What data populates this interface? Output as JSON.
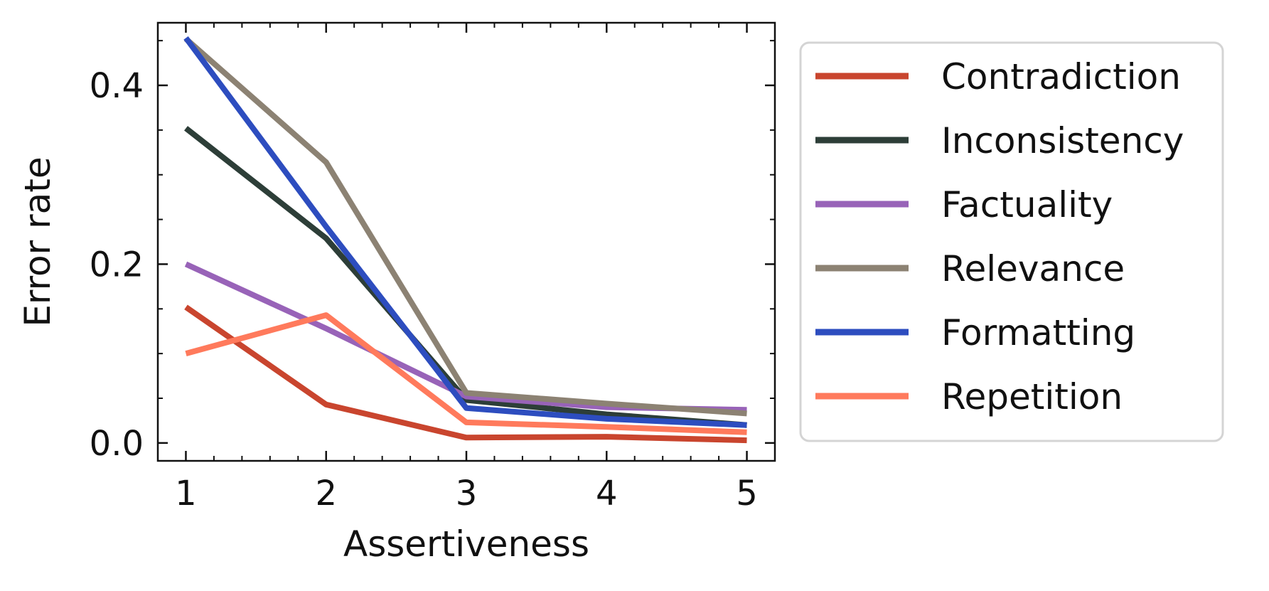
{
  "chart_data": {
    "type": "line",
    "xlabel": "Assertiveness",
    "ylabel": "Error rate",
    "x": [
      1,
      2,
      3,
      4,
      5
    ],
    "xlim": [
      0.8,
      5.2
    ],
    "ylim": [
      -0.02,
      0.47
    ],
    "x_ticks": [
      1,
      2,
      3,
      4,
      5
    ],
    "x_tick_labels": [
      "1",
      "2",
      "3",
      "4",
      "5"
    ],
    "y_ticks": [
      0.0,
      0.2,
      0.4
    ],
    "y_tick_labels": [
      "0.0",
      "0.2",
      "0.4"
    ],
    "grid": false,
    "legend_position": "right",
    "series": [
      {
        "name": "Contradiction",
        "color": "#c9452e",
        "values": [
          0.152,
          0.043,
          0.006,
          0.007,
          0.003
        ]
      },
      {
        "name": "Inconsistency",
        "color": "#2d3e38",
        "values": [
          0.352,
          0.229,
          0.048,
          0.032,
          0.02
        ]
      },
      {
        "name": "Factuality",
        "color": "#9863b8",
        "values": [
          0.2,
          0.128,
          0.052,
          0.04,
          0.037
        ]
      },
      {
        "name": "Relevance",
        "color": "#8c8273",
        "values": [
          0.452,
          0.314,
          0.056,
          0.044,
          0.033
        ]
      },
      {
        "name": "Formatting",
        "color": "#2d4dbf",
        "values": [
          0.453,
          0.242,
          0.039,
          0.027,
          0.02
        ]
      },
      {
        "name": "Repetition",
        "color": "#ff7a5c",
        "values": [
          0.1,
          0.143,
          0.023,
          0.018,
          0.012
        ]
      }
    ]
  }
}
